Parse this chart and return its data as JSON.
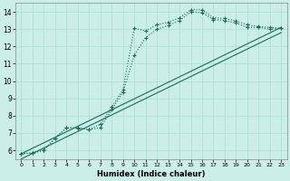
{
  "title": "",
  "xlabel": "Humidex (Indice chaleur)",
  "background_color": "#cceee8",
  "grid_color": "#aaddcc",
  "line_color": "#1a6b5a",
  "xlim": [
    -0.5,
    23.5
  ],
  "ylim": [
    5.5,
    14.5
  ],
  "xticks": [
    0,
    1,
    2,
    3,
    4,
    5,
    6,
    7,
    8,
    9,
    10,
    11,
    12,
    13,
    14,
    15,
    16,
    17,
    18,
    19,
    20,
    21,
    22,
    23
  ],
  "yticks": [
    6,
    7,
    8,
    9,
    10,
    11,
    12,
    13,
    14
  ],
  "series1_x": [
    0,
    1,
    2,
    3,
    4,
    5,
    6,
    7,
    8,
    9,
    10,
    11,
    12,
    13,
    14,
    15,
    16,
    17,
    18,
    19,
    20,
    21,
    22,
    23
  ],
  "series1_y": [
    5.8,
    5.85,
    6.0,
    6.7,
    7.3,
    7.3,
    7.2,
    7.5,
    8.5,
    9.5,
    13.05,
    12.9,
    13.25,
    13.4,
    13.65,
    14.12,
    14.12,
    13.65,
    13.62,
    13.47,
    13.25,
    13.15,
    13.1,
    13.05
  ],
  "series2_x": [
    0,
    1,
    2,
    3,
    4,
    5,
    6,
    7,
    8,
    9,
    10,
    11,
    12,
    13,
    14,
    15,
    16,
    17,
    18,
    19,
    20,
    21,
    22,
    23
  ],
  "series2_y": [
    5.8,
    5.85,
    6.0,
    6.7,
    7.3,
    7.28,
    7.2,
    7.3,
    8.35,
    9.35,
    11.5,
    12.5,
    13.0,
    13.2,
    13.5,
    14.0,
    13.95,
    13.55,
    13.5,
    13.35,
    13.1,
    13.1,
    13.0,
    13.05
  ],
  "series3_x": [
    0,
    23
  ],
  "series3_y": [
    5.8,
    13.1
  ],
  "series4_x": [
    0,
    23
  ],
  "series4_y": [
    5.5,
    12.8
  ],
  "marker_size": 1.8,
  "line_width": 0.8
}
